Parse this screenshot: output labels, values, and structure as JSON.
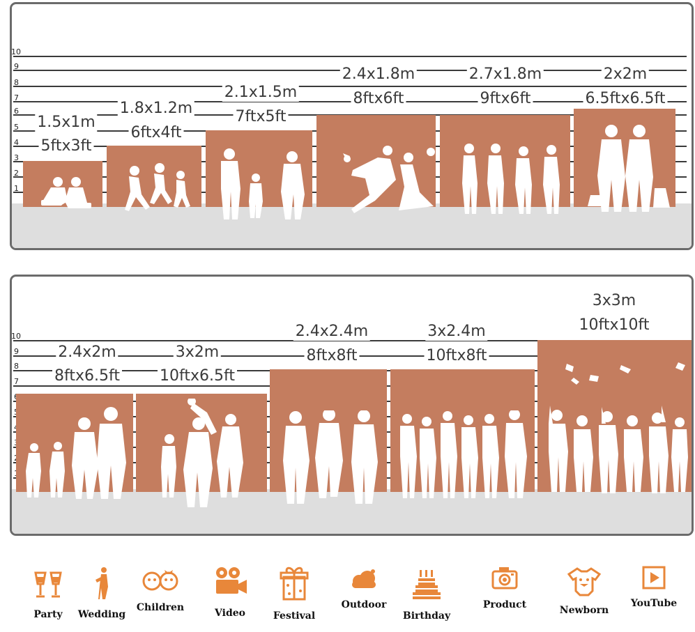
{
  "top_panel": {
    "ticks": [
      "10",
      "9",
      "8",
      "7",
      "6",
      "5",
      "4",
      "3",
      "2",
      "1"
    ],
    "backdrops": [
      {
        "metric": "1.5x1m",
        "imperial": "5ftx3ft",
        "people": "two children reading"
      },
      {
        "metric": "1.8x1.2m",
        "imperial": "6ftx4ft",
        "people": "children running"
      },
      {
        "metric": "2.1x1.5m",
        "imperial": "7ftx5ft",
        "people": "parents with child"
      },
      {
        "metric": "2.4x1.8m",
        "imperial": "8ftx6ft",
        "people": "wedding couple"
      },
      {
        "metric": "2.7x1.8m",
        "imperial": "9ftx6ft",
        "people": "four women"
      },
      {
        "metric": "2x2m",
        "imperial": "6.5ftx6.5ft",
        "people": "couple with dogs"
      }
    ]
  },
  "bottom_panel": {
    "ticks": [
      "10",
      "9",
      "8",
      "7",
      "6",
      "5",
      "4",
      "3",
      "2",
      "1"
    ],
    "backdrops": [
      {
        "metric": "2.4x2m",
        "imperial": "8ftx6.5ft",
        "people": "family of four"
      },
      {
        "metric": "3x2m",
        "imperial": "10ftx6.5ft",
        "people": "parents lifting child"
      },
      {
        "metric": "2.4x2.4m",
        "imperial": "8ftx8ft",
        "people": "three adults"
      },
      {
        "metric": "3x2.4m",
        "imperial": "10ftx8ft",
        "people": "group of friends"
      },
      {
        "metric": "3x3m",
        "imperial": "10ftx10ft",
        "people": "graduates throwing caps"
      }
    ]
  },
  "categories": [
    {
      "label": "Party",
      "icon": "champagne-glasses-icon"
    },
    {
      "label": "Wedding",
      "icon": "bride-icon"
    },
    {
      "label": "Children",
      "icon": "children-faces-icon"
    },
    {
      "label": "Video",
      "icon": "video-camera-icon"
    },
    {
      "label": "Festival",
      "icon": "gift-box-icon"
    },
    {
      "label": "Outdoor",
      "icon": "cloud-icon"
    },
    {
      "label": "Birthday",
      "icon": "birthday-cake-icon"
    },
    {
      "label": "Product",
      "icon": "camera-icon"
    },
    {
      "label": "Newborn",
      "icon": "baby-onesie-icon"
    },
    {
      "label": "YouTube",
      "icon": "play-button-icon"
    }
  ],
  "colors": {
    "backdrop": "#c47d5f",
    "icon": "#e8873a",
    "floor": "#dedede",
    "border": "#6b6b6b"
  }
}
